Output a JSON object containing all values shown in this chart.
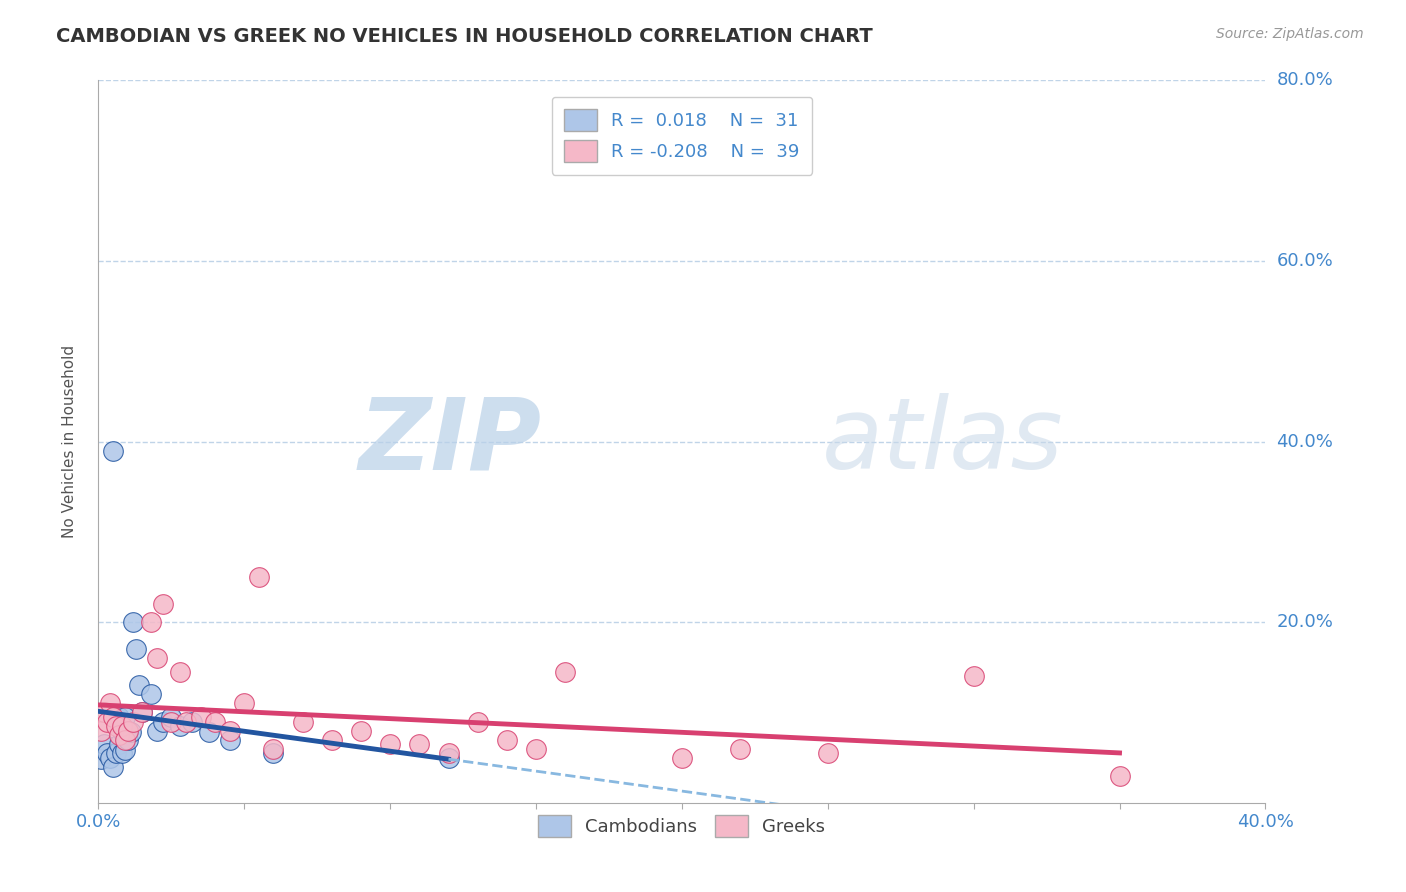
{
  "title": "CAMBODIAN VS GREEK NO VEHICLES IN HOUSEHOLD CORRELATION CHART",
  "source_text": "Source: ZipAtlas.com",
  "ylabel": "No Vehicles in Household",
  "xlim": [
    0.0,
    0.4
  ],
  "ylim": [
    0.0,
    0.8
  ],
  "legend_cambodians": "Cambodians",
  "legend_greeks": "Greeks",
  "cambodian_color": "#aec6e8",
  "greek_color": "#f5b8c8",
  "cambodian_line_color": "#2255a0",
  "greek_line_color": "#d84070",
  "trendline_dash_color": "#88b8e0",
  "background_color": "#ffffff",
  "grid_color": "#c0d4e8",
  "title_color": "#333333",
  "axis_label_color": "#555555",
  "tick_label_color": "#4488cc",
  "watermark_zip": "ZIP",
  "watermark_atlas": "atlas",
  "marker_size": 200,
  "cambodian_x": [
    0.001,
    0.002,
    0.003,
    0.004,
    0.005,
    0.005,
    0.006,
    0.006,
    0.007,
    0.007,
    0.008,
    0.008,
    0.009,
    0.009,
    0.01,
    0.01,
    0.011,
    0.012,
    0.013,
    0.014,
    0.015,
    0.018,
    0.02,
    0.022,
    0.025,
    0.028,
    0.032,
    0.038,
    0.045,
    0.06,
    0.12
  ],
  "cambodian_y": [
    0.048,
    0.065,
    0.055,
    0.05,
    0.04,
    0.39,
    0.095,
    0.055,
    0.095,
    0.065,
    0.08,
    0.055,
    0.095,
    0.058,
    0.08,
    0.07,
    0.078,
    0.2,
    0.17,
    0.13,
    0.1,
    0.12,
    0.08,
    0.09,
    0.095,
    0.085,
    0.09,
    0.078,
    0.07,
    0.055,
    0.05
  ],
  "greek_x": [
    0.001,
    0.002,
    0.003,
    0.004,
    0.005,
    0.006,
    0.007,
    0.008,
    0.009,
    0.01,
    0.012,
    0.015,
    0.018,
    0.02,
    0.022,
    0.025,
    0.028,
    0.03,
    0.035,
    0.04,
    0.045,
    0.05,
    0.055,
    0.06,
    0.07,
    0.08,
    0.09,
    0.1,
    0.11,
    0.12,
    0.13,
    0.14,
    0.15,
    0.16,
    0.2,
    0.22,
    0.25,
    0.3,
    0.35
  ],
  "greek_y": [
    0.08,
    0.1,
    0.09,
    0.11,
    0.095,
    0.085,
    0.075,
    0.085,
    0.07,
    0.08,
    0.09,
    0.1,
    0.2,
    0.16,
    0.22,
    0.09,
    0.145,
    0.09,
    0.095,
    0.09,
    0.08,
    0.11,
    0.25,
    0.06,
    0.09,
    0.07,
    0.08,
    0.065,
    0.065,
    0.055,
    0.09,
    0.07,
    0.06,
    0.145,
    0.05,
    0.06,
    0.055,
    0.14,
    0.03
  ]
}
